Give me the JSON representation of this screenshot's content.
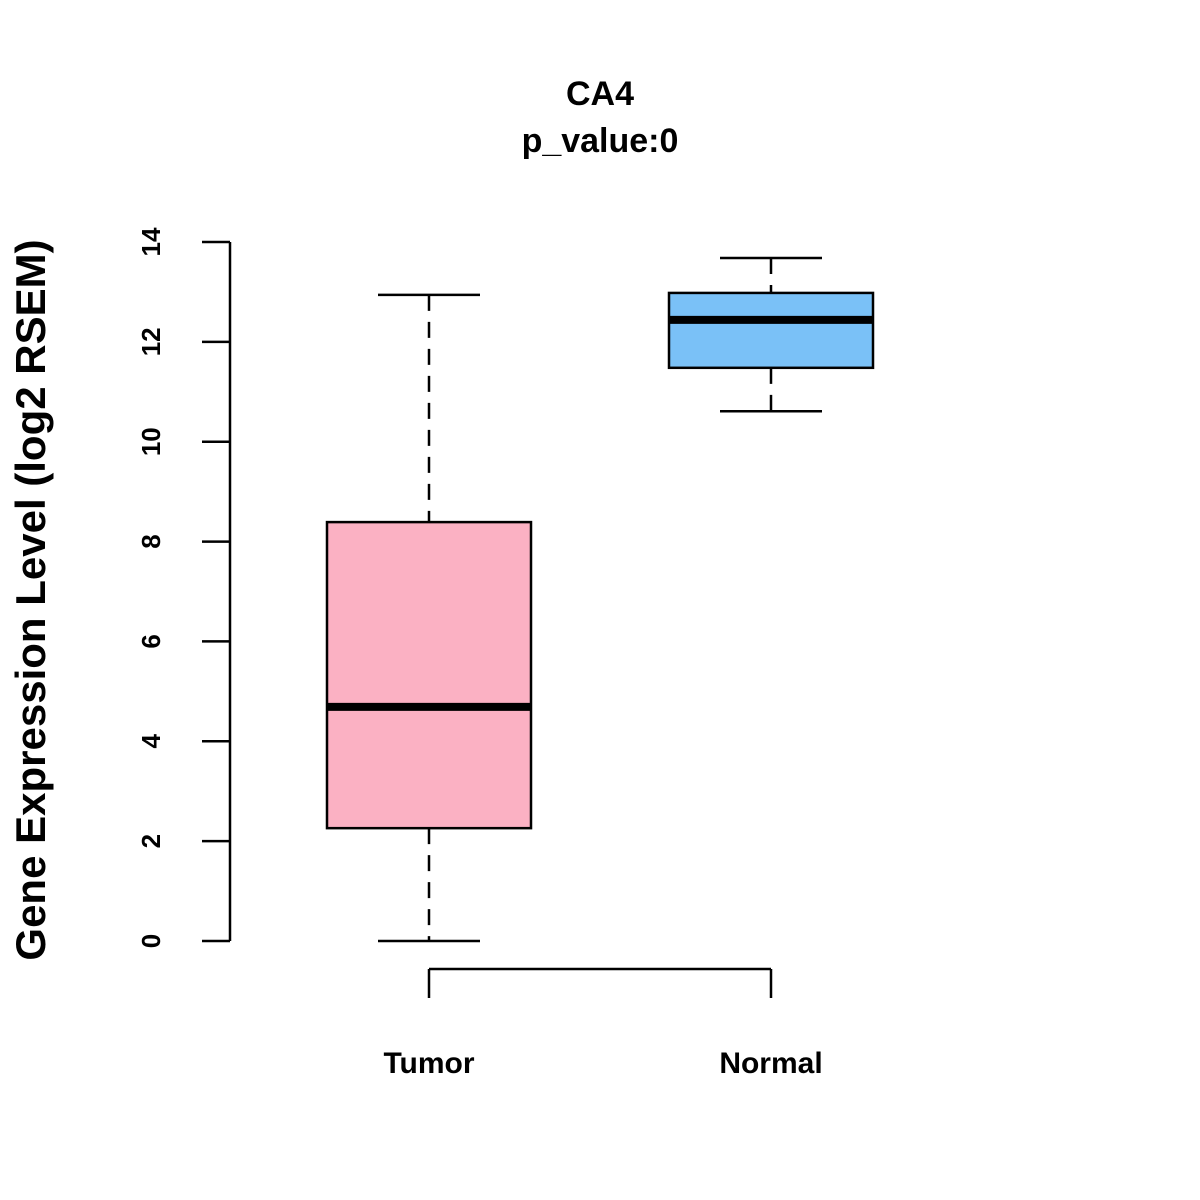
{
  "chart_data": {
    "type": "boxplot",
    "title": "CA4",
    "subtitle": "p_value:0",
    "xlabel": "",
    "ylabel": "Gene Expression Level (log2 RSEM)",
    "ylim": [
      0,
      14
    ],
    "yticks": [
      0,
      2,
      4,
      6,
      8,
      10,
      12,
      14
    ],
    "ytick_labels": [
      "0",
      "2",
      "4",
      "6",
      "8",
      "10",
      "12",
      "14"
    ],
    "grid": false,
    "categories": [
      "Tumor",
      "Normal"
    ],
    "series": [
      {
        "name": "Tumor",
        "color": "#FBB1C3",
        "min": 0.0,
        "q1": 2.26,
        "median": 4.69,
        "q3": 8.39,
        "max": 12.94
      },
      {
        "name": "Normal",
        "color": "#7AC1F7",
        "min": 10.61,
        "q1": 11.48,
        "median": 12.44,
        "q3": 12.98,
        "max": 13.68
      }
    ]
  }
}
